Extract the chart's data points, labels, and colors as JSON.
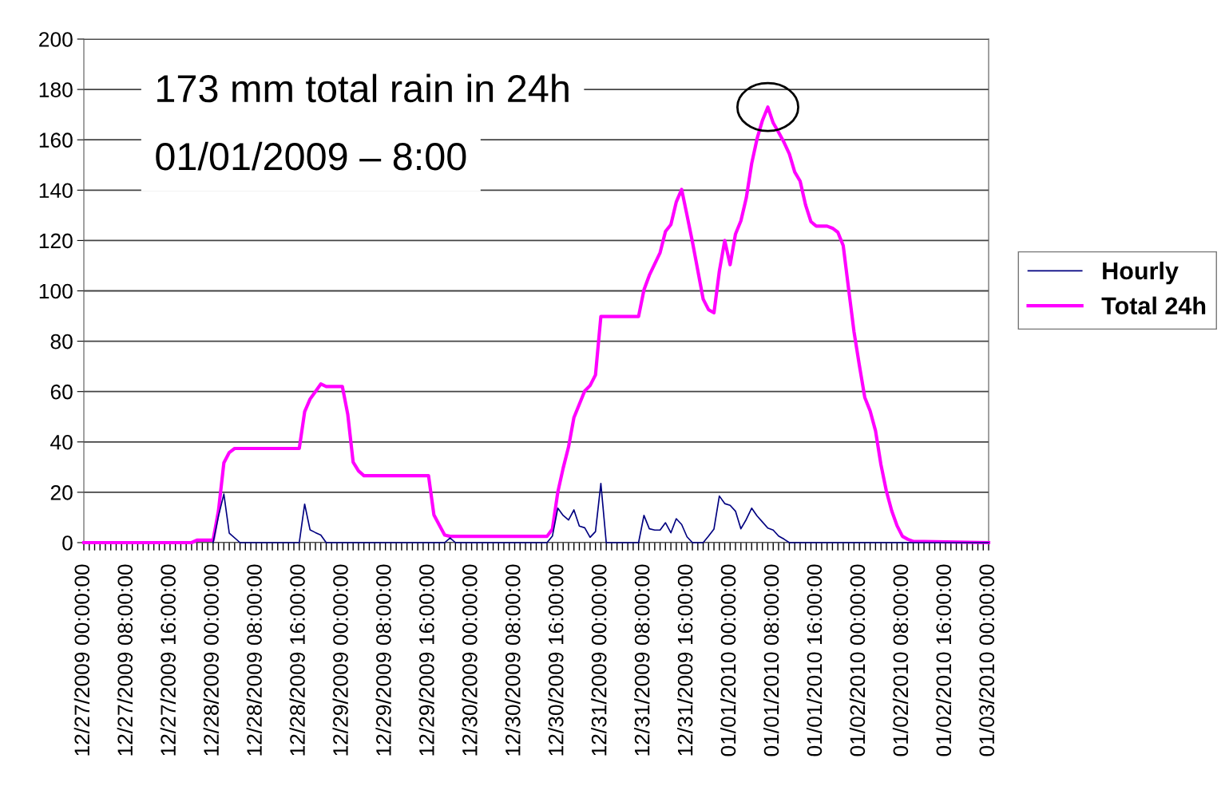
{
  "chart_data": {
    "type": "line",
    "annotations": [
      "173 mm total rain in 24h",
      "01/01/2009 – 8:00"
    ],
    "series": [
      {
        "name": "Hourly",
        "color": "#000080",
        "x": [
          "2009-12-28T00:00",
          "2009-12-28T01:00",
          "2009-12-28T02:00",
          "2009-12-28T03:00",
          "2009-12-28T05:00",
          "2009-12-28T16:00",
          "2009-12-28T17:00",
          "2009-12-28T18:00",
          "2009-12-28T19:00",
          "2009-12-28T20:00",
          "2009-12-28T21:00",
          "2009-12-29T19:00",
          "2009-12-29T20:00",
          "2009-12-29T21:00",
          "2009-12-30T14:00",
          "2009-12-30T15:00",
          "2009-12-30T16:00",
          "2009-12-30T17:00",
          "2009-12-30T18:00",
          "2009-12-30T19:00",
          "2009-12-30T20:00",
          "2009-12-30T21:00",
          "2009-12-30T22:00",
          "2009-12-30T23:00",
          "2009-12-31T00:00",
          "2009-12-31T01:00",
          "2009-12-31T07:00",
          "2009-12-31T08:00",
          "2009-12-31T09:00",
          "2009-12-31T10:00",
          "2009-12-31T11:00",
          "2009-12-31T12:00",
          "2009-12-31T13:00",
          "2009-12-31T14:00",
          "2009-12-31T15:00",
          "2009-12-31T16:00",
          "2009-12-31T17:00",
          "2009-12-31T19:00",
          "2009-12-31T20:00",
          "2009-12-31T21:00",
          "2009-12-31T22:00",
          "2009-12-31T23:00",
          "2010-01-01T00:00",
          "2010-01-01T01:00",
          "2010-01-01T02:00",
          "2010-01-01T03:00",
          "2010-01-01T04:00",
          "2010-01-01T05:00",
          "2010-01-01T06:00",
          "2010-01-01T07:00",
          "2010-01-01T08:00",
          "2010-01-01T09:00",
          "2010-01-01T10:00",
          "2010-01-01T11:00",
          "2010-01-03T00:00"
        ],
        "values": [
          0,
          10.6,
          19.3,
          3.8,
          0,
          0,
          15.3,
          5.1,
          4,
          3,
          0,
          0,
          1.9,
          0,
          0,
          2.6,
          13.7,
          10.8,
          9,
          13,
          6.6,
          5.9,
          2.1,
          4.4,
          23.5,
          0,
          0,
          10.8,
          5.5,
          5,
          5,
          7.9,
          3.9,
          9.5,
          7.2,
          2.3,
          0,
          0,
          2.6,
          5.4,
          18.5,
          15.5,
          14.8,
          12.5,
          5.5,
          9.2,
          13.7,
          10.6,
          8.2,
          5.8,
          5,
          2.6,
          1.4,
          0,
          0
        ]
      },
      {
        "name": "Total 24h",
        "color": "#ff00ff",
        "x": [
          "2009-12-27T00:00",
          "2009-12-27T20:00",
          "2009-12-27T21:00",
          "2009-12-28T00:00",
          "2009-12-28T01:00",
          "2009-12-28T02:00",
          "2009-12-28T03:00",
          "2009-12-28T04:00",
          "2009-12-28T16:00",
          "2009-12-28T17:00",
          "2009-12-28T18:00",
          "2009-12-28T19:00",
          "2009-12-28T20:00",
          "2009-12-28T21:00",
          "2009-12-29T00:00",
          "2009-12-29T01:00",
          "2009-12-29T02:00",
          "2009-12-29T03:00",
          "2009-12-29T04:00",
          "2009-12-29T16:00",
          "2009-12-29T17:00",
          "2009-12-29T18:00",
          "2009-12-29T19:00",
          "2009-12-29T20:00",
          "2009-12-30T14:00",
          "2009-12-30T15:00",
          "2009-12-30T16:00",
          "2009-12-30T17:00",
          "2009-12-30T18:00",
          "2009-12-30T19:00",
          "2009-12-30T21:00",
          "2009-12-30T22:00",
          "2009-12-30T23:00",
          "2009-12-31T00:00",
          "2009-12-31T07:00",
          "2009-12-31T08:00",
          "2009-12-31T09:00",
          "2009-12-31T11:00",
          "2009-12-31T12:00",
          "2009-12-31T13:00",
          "2009-12-31T14:00",
          "2009-12-31T15:00",
          "2009-12-31T16:00",
          "2009-12-31T17:00",
          "2009-12-31T19:00",
          "2009-12-31T20:00",
          "2009-12-31T21:00",
          "2009-12-31T22:00",
          "2009-12-31T23:00",
          "2010-01-01T00:00",
          "2010-01-01T01:00",
          "2010-01-01T02:00",
          "2010-01-01T03:00",
          "2010-01-01T04:00",
          "2010-01-01T05:00",
          "2010-01-01T06:00",
          "2010-01-01T07:00",
          "2010-01-01T08:00",
          "2010-01-01T09:00",
          "2010-01-01T10:00",
          "2010-01-01T11:00",
          "2010-01-01T12:00",
          "2010-01-01T13:00",
          "2010-01-01T14:00",
          "2010-01-01T15:00",
          "2010-01-01T16:00",
          "2010-01-01T18:00",
          "2010-01-01T19:00",
          "2010-01-01T20:00",
          "2010-01-01T21:00",
          "2010-01-01T22:00",
          "2010-01-01T23:00",
          "2010-01-02T00:00",
          "2010-01-02T01:00",
          "2010-01-02T02:00",
          "2010-01-02T03:00",
          "2010-01-02T04:00",
          "2010-01-02T05:00",
          "2010-01-02T06:00",
          "2010-01-02T07:00",
          "2010-01-02T08:00",
          "2010-01-02T09:00",
          "2010-01-02T10:00",
          "2010-01-03T00:00"
        ],
        "values": [
          0,
          0,
          1,
          1,
          12.7,
          31.7,
          35.8,
          37.4,
          37.4,
          52,
          57,
          60,
          63,
          62,
          62,
          51,
          32,
          28.5,
          26.6,
          26.6,
          11,
          7,
          3,
          2.5,
          2.5,
          5.4,
          20,
          29.6,
          38,
          49.7,
          60.2,
          62.4,
          66.6,
          89.8,
          89.8,
          100.4,
          106.2,
          115.2,
          123.6,
          126.3,
          135.3,
          140.3,
          130,
          119.5,
          96.7,
          92.5,
          91.3,
          107.8,
          120,
          110.4,
          122.6,
          127.8,
          136.9,
          150.6,
          160.4,
          167.7,
          173,
          166.7,
          163,
          159,
          154.4,
          147.2,
          143.6,
          134.2,
          127.5,
          125.7,
          125.7,
          124.9,
          123.3,
          118,
          100.8,
          83.8,
          70.4,
          57.7,
          52.3,
          44.4,
          31,
          20.6,
          12.7,
          6.7,
          2.5,
          1.3,
          0.5,
          0
        ]
      }
    ],
    "xlim": [
      "2009-12-27T00:00",
      "2010-01-03T00:00"
    ],
    "xticks": [
      {
        "value": "2009-12-27T00:00",
        "label": "12/27/2009 00:00:00"
      },
      {
        "value": "2009-12-27T08:00",
        "label": "12/27/2009 08:00:00"
      },
      {
        "value": "2009-12-27T16:00",
        "label": "12/27/2009 16:00:00"
      },
      {
        "value": "2009-12-28T00:00",
        "label": "12/28/2009 00:00:00"
      },
      {
        "value": "2009-12-28T08:00",
        "label": "12/28/2009 08:00:00"
      },
      {
        "value": "2009-12-28T16:00",
        "label": "12/28/2009 16:00:00"
      },
      {
        "value": "2009-12-29T00:00",
        "label": "12/29/2009 00:00:00"
      },
      {
        "value": "2009-12-29T08:00",
        "label": "12/29/2009 08:00:00"
      },
      {
        "value": "2009-12-29T16:00",
        "label": "12/29/2009 16:00:00"
      },
      {
        "value": "2009-12-30T00:00",
        "label": "12/30/2009 00:00:00"
      },
      {
        "value": "2009-12-30T08:00",
        "label": "12/30/2009 08:00:00"
      },
      {
        "value": "2009-12-30T16:00",
        "label": "12/30/2009 16:00:00"
      },
      {
        "value": "2009-12-31T00:00",
        "label": "12/31/2009 00:00:00"
      },
      {
        "value": "2009-12-31T08:00",
        "label": "12/31/2009 08:00:00"
      },
      {
        "value": "2009-12-31T16:00",
        "label": "12/31/2009 16:00:00"
      },
      {
        "value": "2010-01-01T00:00",
        "label": "01/01/2010 00:00:00"
      },
      {
        "value": "2010-01-01T08:00",
        "label": "01/01/2010 08:00:00"
      },
      {
        "value": "2010-01-01T16:00",
        "label": "01/01/2010 16:00:00"
      },
      {
        "value": "2010-01-02T00:00",
        "label": "01/02/2010 00:00:00"
      },
      {
        "value": "2010-01-02T08:00",
        "label": "01/02/2010 08:00:00"
      },
      {
        "value": "2010-01-02T16:00",
        "label": "01/02/2010 16:00:00"
      },
      {
        "value": "2010-01-03T00:00",
        "label": "01/03/2010 00:00:00"
      }
    ],
    "ylim": [
      0,
      200
    ],
    "yticks": [
      0,
      20,
      40,
      60,
      80,
      100,
      120,
      140,
      160,
      180,
      200
    ],
    "grid": "y",
    "legend": "right",
    "marker": "none",
    "line_style": "solid"
  }
}
